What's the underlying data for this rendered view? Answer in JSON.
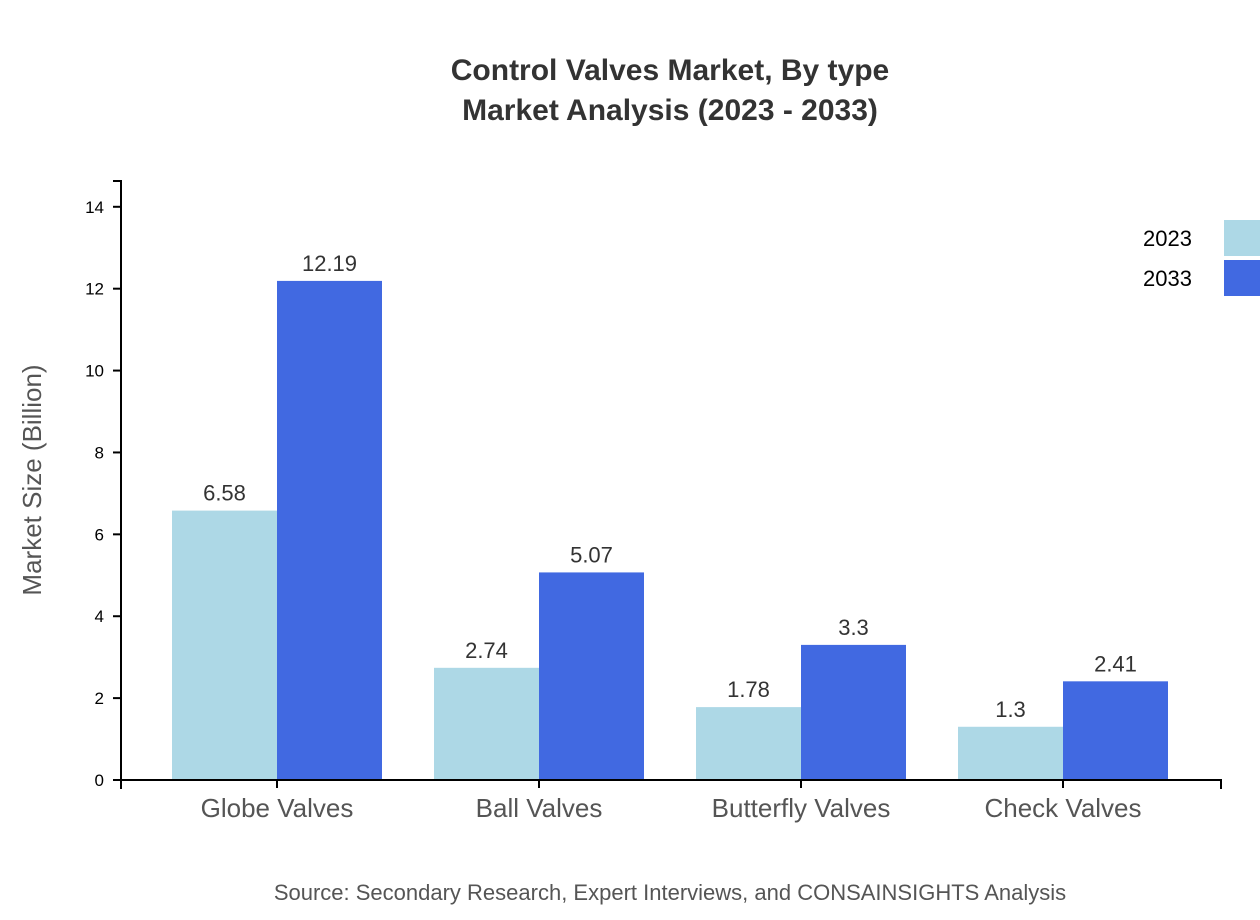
{
  "chart_data": {
    "type": "bar",
    "title": [
      "Control Valves Market, By type",
      "Market Analysis (2023 - 2033)"
    ],
    "xlabel": "",
    "ylabel": "Market Size (Billion)",
    "categories": [
      "Globe Valves",
      "Ball Valves",
      "Butterfly Valves",
      "Check Valves"
    ],
    "series": [
      {
        "name": "2023",
        "color": "#add8e6",
        "values": [
          6.58,
          2.74,
          1.78,
          1.3
        ]
      },
      {
        "name": "2033",
        "color": "#4169e1",
        "values": [
          12.19,
          5.07,
          3.3,
          2.41
        ]
      }
    ],
    "ylim": [
      0,
      14.63
    ],
    "yticks": [
      0,
      2,
      4,
      6,
      8,
      10,
      12,
      14
    ],
    "grid": false,
    "legend": "top-right",
    "source": "Source: Secondary Research, Expert Interviews, and CONSAINSIGHTS Analysis"
  }
}
